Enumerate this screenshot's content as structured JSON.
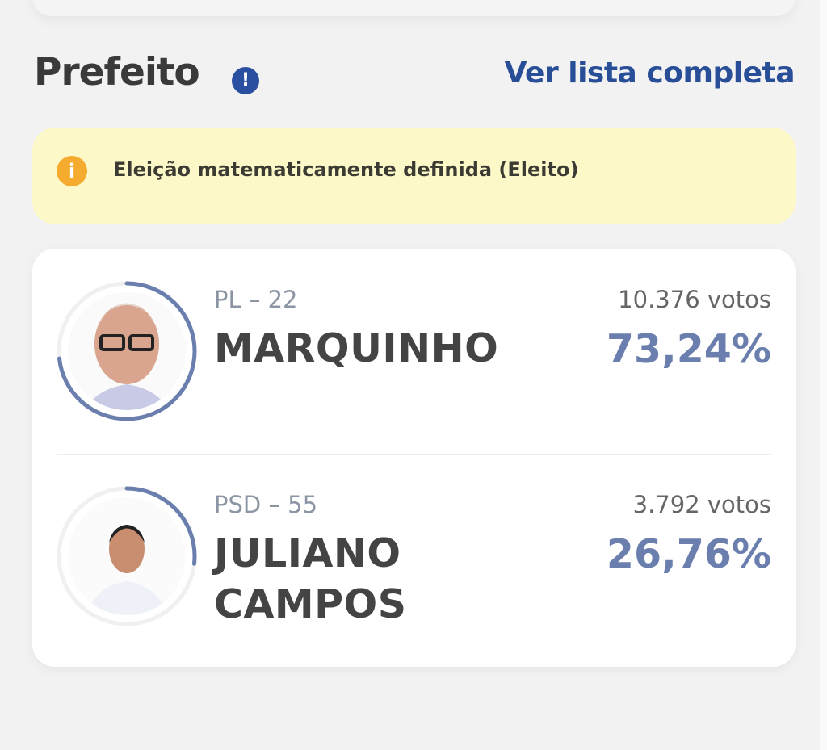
{
  "header": {
    "title": "Prefeito",
    "info_icon": "exclamation-circle-icon",
    "link_label": "Ver lista completa"
  },
  "alert": {
    "icon": "info-circle-icon",
    "text": "Eleição matematicamente definida (Eleito)"
  },
  "colors": {
    "accent": "#284e98",
    "ring": "#6b7fae",
    "alert_bg": "#fdf8c8",
    "alert_icon": "#f5ab2e"
  },
  "candidates": [
    {
      "party": "PL – 22",
      "name": "MARQUINHO",
      "votes": "10.376 votos",
      "percent": "73,24%",
      "share": 73.24
    },
    {
      "party": "PSD – 55",
      "name": "JULIANO CAMPOS",
      "votes": "3.792 votos",
      "percent": "26,76%",
      "share": 26.76
    }
  ]
}
